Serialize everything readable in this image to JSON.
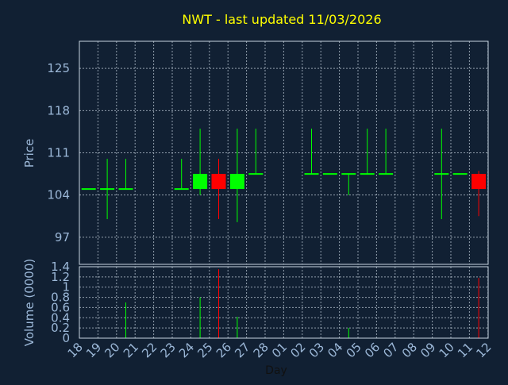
{
  "chart_data": [
    {
      "type": "candlestick",
      "title": "NWT - last updated 11/03/2026",
      "ylabel": "Price",
      "ylim": [
        92.5,
        129.5
      ],
      "yticks": [
        97,
        104,
        111,
        118,
        125
      ],
      "grid": true,
      "categories": [
        "18",
        "19",
        "20",
        "21",
        "22",
        "23",
        "24",
        "25",
        "26",
        "27",
        "28",
        "01",
        "02",
        "03",
        "04",
        "05",
        "06",
        "07",
        "08",
        "09",
        "10",
        "11",
        "12"
      ],
      "candles": [
        {
          "day": "18",
          "open": 105,
          "high": 105,
          "low": 105,
          "close": 105
        },
        {
          "day": "19",
          "open": 105,
          "high": 110,
          "low": 100,
          "close": 105
        },
        {
          "day": "20",
          "open": 105,
          "high": 110,
          "low": 105,
          "close": 105
        },
        {
          "day": "23",
          "open": 105,
          "high": 110,
          "low": 105,
          "close": 105
        },
        {
          "day": "24",
          "open": 105,
          "high": 115,
          "low": 104,
          "close": 107.5
        },
        {
          "day": "25",
          "open": 107.5,
          "high": 110,
          "low": 100,
          "close": 105
        },
        {
          "day": "26",
          "open": 105,
          "high": 115,
          "low": 99.5,
          "close": 107.5
        },
        {
          "day": "27",
          "open": 107.5,
          "high": 115,
          "low": 107.5,
          "close": 107.5
        },
        {
          "day": "02",
          "open": 107.5,
          "high": 115,
          "low": 107.5,
          "close": 107.5
        },
        {
          "day": "03",
          "open": 107.5,
          "high": 107.5,
          "low": 107.5,
          "close": 107.5
        },
        {
          "day": "04",
          "open": 107.5,
          "high": 107.5,
          "low": 104,
          "close": 107.5
        },
        {
          "day": "05",
          "open": 107.5,
          "high": 115,
          "low": 107.5,
          "close": 107.5
        },
        {
          "day": "06",
          "open": 107.5,
          "high": 115,
          "low": 107.5,
          "close": 107.5
        },
        {
          "day": "09",
          "open": 107.5,
          "high": 115,
          "low": 100,
          "close": 107.5
        },
        {
          "day": "10",
          "open": 107.5,
          "high": 107.5,
          "low": 107.5,
          "close": 107.5
        },
        {
          "day": "11",
          "open": 107.5,
          "high": 108,
          "low": 100.5,
          "close": 105
        }
      ],
      "colors": {
        "up": "#00ff00",
        "down": "#ff0000",
        "flat": "#00ff00",
        "background": "#112033",
        "text": "#9cb8d8",
        "title": "#ffff00"
      }
    },
    {
      "type": "bar",
      "ylabel": "Volume (0000)",
      "xlabel": "Day",
      "ylim": [
        0,
        1.4
      ],
      "ytick_labels": [
        "0",
        "0.2",
        "0.4",
        "0.6",
        "0.8",
        "1",
        "1.2",
        "1.4"
      ],
      "grid": true,
      "categories": [
        "18",
        "19",
        "20",
        "21",
        "22",
        "23",
        "24",
        "25",
        "26",
        "27",
        "28",
        "01",
        "02",
        "03",
        "04",
        "05",
        "06",
        "07",
        "08",
        "09",
        "10",
        "11",
        "12"
      ],
      "bars": [
        {
          "day": "20",
          "value": 0.7,
          "color": "#00ff00"
        },
        {
          "day": "24",
          "value": 0.8,
          "color": "#00ff00"
        },
        {
          "day": "25",
          "value": 1.35,
          "color": "#ff0000"
        },
        {
          "day": "26",
          "value": 0.42,
          "color": "#00ff00"
        },
        {
          "day": "04",
          "value": 0.2,
          "color": "#00ff00"
        },
        {
          "day": "11",
          "value": 1.18,
          "color": "#ff0000"
        }
      ]
    }
  ]
}
